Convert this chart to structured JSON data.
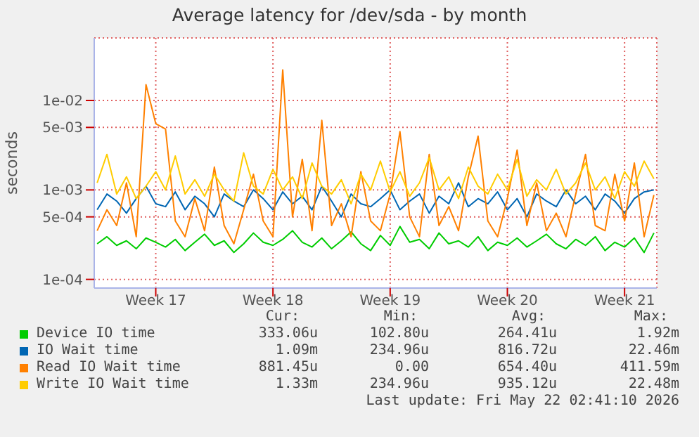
{
  "chart_data": {
    "type": "line",
    "title": "Average latency for /dev/sda - by month",
    "ylabel": "seconds",
    "log": "y",
    "grid": true,
    "legend": "bottom",
    "line_style": "solid",
    "ylim": [
      8e-05,
      0.05
    ],
    "yticks": [
      {
        "value": 0.0001,
        "label": "1e-04"
      },
      {
        "value": 0.0005,
        "label": "5e-04"
      },
      {
        "value": 0.001,
        "label": "1e-03"
      },
      {
        "value": 0.005,
        "label": "5e-03"
      },
      {
        "value": 0.01,
        "label": "1e-02"
      }
    ],
    "categories": [
      null,
      null,
      null,
      null,
      null,
      null,
      "Week 17",
      null,
      null,
      null,
      null,
      null,
      null,
      null,
      null,
      null,
      null,
      null,
      "Week 18",
      null,
      null,
      null,
      null,
      null,
      null,
      null,
      null,
      null,
      null,
      null,
      "Week 19",
      null,
      null,
      null,
      null,
      null,
      null,
      null,
      null,
      null,
      null,
      null,
      "Week 20",
      null,
      null,
      null,
      null,
      null,
      null,
      null,
      null,
      null,
      null,
      null,
      "Week 21",
      null,
      null,
      null
    ],
    "series": [
      {
        "name": "Device IO time",
        "color": "#00cc00",
        "values": [
          0.00025,
          0.0003,
          0.00024,
          0.00027,
          0.00022,
          0.00029,
          0.00026,
          0.00023,
          0.00028,
          0.00021,
          0.00026,
          0.00032,
          0.00024,
          0.00027,
          0.0002,
          0.00025,
          0.00033,
          0.00026,
          0.00024,
          0.00028,
          0.00035,
          0.00026,
          0.00023,
          0.00029,
          0.00022,
          0.00027,
          0.00034,
          0.00025,
          0.00021,
          0.00031,
          0.00024,
          0.00039,
          0.00026,
          0.00028,
          0.00022,
          0.00033,
          0.00025,
          0.00027,
          0.00023,
          0.0003,
          0.00021,
          0.00026,
          0.00024,
          0.00029,
          0.00023,
          0.00027,
          0.00032,
          0.00025,
          0.00022,
          0.00028,
          0.00024,
          0.0003,
          0.00021,
          0.00026,
          0.00023,
          0.00029,
          0.0002,
          0.00033
        ]
      },
      {
        "name": "IO Wait time",
        "color": "#0066b3",
        "values": [
          0.0006,
          0.0009,
          0.00075,
          0.00055,
          0.0008,
          0.0011,
          0.0007,
          0.00065,
          0.00095,
          0.0006,
          0.00085,
          0.0007,
          0.0005,
          0.0009,
          0.00075,
          0.00065,
          0.001,
          0.0008,
          0.0006,
          0.00095,
          0.0007,
          0.00085,
          0.0006,
          0.0011,
          0.00075,
          0.0005,
          0.0009,
          0.0007,
          0.00065,
          0.0008,
          0.001,
          0.0006,
          0.00075,
          0.0009,
          0.00055,
          0.00085,
          0.0007,
          0.0012,
          0.00065,
          0.0008,
          0.0007,
          0.00095,
          0.0006,
          0.0008,
          0.0005,
          0.0009,
          0.00075,
          0.00065,
          0.001,
          0.0007,
          0.00085,
          0.0006,
          0.0009,
          0.00075,
          0.00055,
          0.0008,
          0.00095,
          0.001
        ]
      },
      {
        "name": "Read IO Wait time",
        "color": "#ff8000",
        "values": [
          0.00035,
          0.0006,
          0.0004,
          0.0012,
          0.0003,
          0.015,
          0.0055,
          0.0048,
          0.00045,
          0.0003,
          0.0008,
          0.00035,
          0.0018,
          0.0004,
          0.00025,
          0.0006,
          0.0015,
          0.00045,
          0.0003,
          0.022,
          0.0005,
          0.0022,
          0.00035,
          0.006,
          0.0004,
          0.0007,
          0.0003,
          0.0016,
          0.00045,
          0.00035,
          0.0009,
          0.0045,
          0.0005,
          0.0003,
          0.0025,
          0.0004,
          0.00065,
          0.00035,
          0.0014,
          0.004,
          0.00045,
          0.0003,
          0.0008,
          0.0028,
          0.0004,
          0.0012,
          0.00035,
          0.00055,
          0.0003,
          0.0009,
          0.0025,
          0.0004,
          0.00035,
          0.0015,
          0.00045,
          0.002,
          0.0003,
          0.00088
        ]
      },
      {
        "name": "Write IO Wait time",
        "color": "#ffcc00",
        "values": [
          0.0012,
          0.0025,
          0.0009,
          0.0014,
          0.0008,
          0.0011,
          0.0016,
          0.001,
          0.0024,
          0.0009,
          0.0013,
          0.00085,
          0.0015,
          0.001,
          0.00075,
          0.0026,
          0.0011,
          0.0009,
          0.0017,
          0.001,
          0.0014,
          0.0008,
          0.002,
          0.0011,
          0.0009,
          0.0013,
          0.0007,
          0.0015,
          0.001,
          0.0021,
          0.00095,
          0.0016,
          0.00085,
          0.0012,
          0.0023,
          0.001,
          0.0014,
          0.0008,
          0.0018,
          0.0011,
          0.0009,
          0.0015,
          0.001,
          0.0022,
          0.00085,
          0.0013,
          0.001,
          0.0017,
          0.0009,
          0.0012,
          0.002,
          0.001,
          0.0014,
          0.0008,
          0.0016,
          0.0011,
          0.0021,
          0.00133
        ]
      }
    ],
    "annotations": [
      "Cur:",
      "Min:",
      "Avg:",
      "Max:",
      "333.06u",
      "102.80u",
      "264.41u",
      "1.92m",
      "1.09m",
      "234.96u",
      "816.72u",
      "22.46m",
      "881.45u",
      "0.00",
      "654.40u",
      "411.59m",
      "1.33m",
      "234.96u",
      "935.12u",
      "22.48m",
      "Last update: Fri May 22 02:41:10 2026"
    ]
  }
}
